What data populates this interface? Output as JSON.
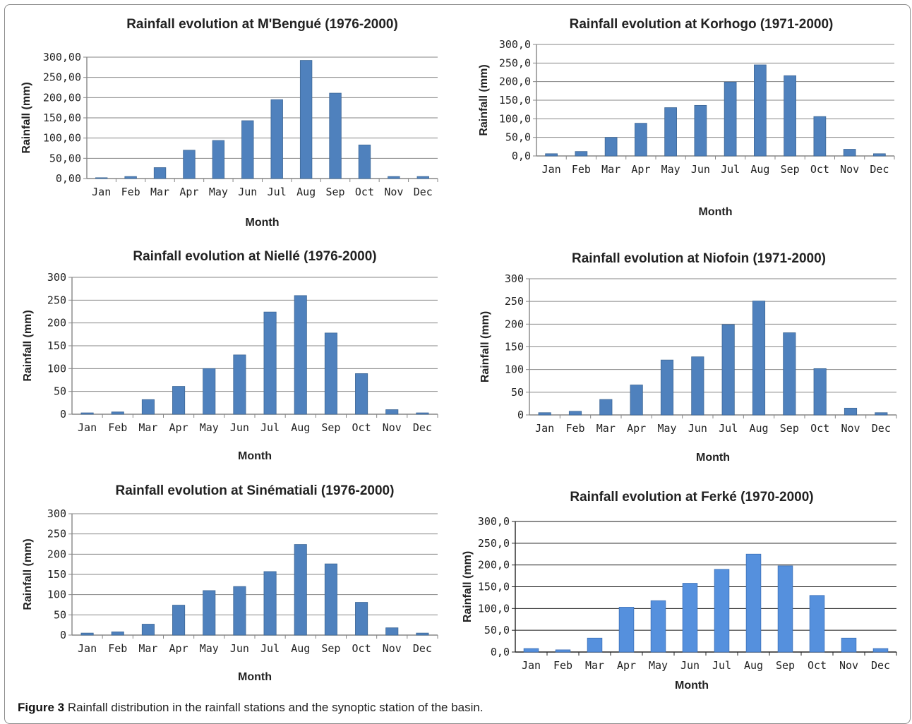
{
  "caption": {
    "label": "Figure 3",
    "text": "Rainfall distribution in the rainfall stations and the synoptic station of the basin."
  },
  "chart_data": [
    {
      "type": "bar",
      "title": "Rainfall evolution at M'Bengué (1976-2000)",
      "xlabel": "Month",
      "ylabel": "Rainfall (mm)",
      "categories": [
        "Jan",
        "Feb",
        "Mar",
        "Apr",
        "May",
        "Jun",
        "Jul",
        "Aug",
        "Sep",
        "Oct",
        "Nov",
        "Dec"
      ],
      "values": [
        2,
        5,
        27,
        70,
        94,
        143,
        195,
        292,
        211,
        83,
        5,
        5
      ],
      "ylim": [
        0,
        300
      ],
      "yticks": [
        "0,00",
        "50,00",
        "100,00",
        "150,00",
        "200,00",
        "250,00",
        "300,00"
      ],
      "grid": true,
      "bar_color": "#4f81bd"
    },
    {
      "type": "bar",
      "title": "Rainfall evolution at Korhogo (1971-2000)",
      "xlabel": "Month",
      "ylabel": "Rainfall (mm)",
      "categories": [
        "Jan",
        "Feb",
        "Mar",
        "Apr",
        "May",
        "Jun",
        "Jul",
        "Aug",
        "Sep",
        "Oct",
        "Nov",
        "Dec"
      ],
      "values": [
        6,
        12,
        50,
        88,
        130,
        136,
        199,
        245,
        216,
        106,
        18,
        6
      ],
      "ylim": [
        0,
        300
      ],
      "yticks": [
        "0,0",
        "50,0",
        "100,0",
        "150,0",
        "200,0",
        "250,0",
        "300,0"
      ],
      "grid": true,
      "bar_color": "#4f81bd"
    },
    {
      "type": "bar",
      "title": "Rainfall evolution at Niellé (1976-2000)",
      "xlabel": "Month",
      "ylabel": "Rainfall (mm)",
      "categories": [
        "Jan",
        "Feb",
        "Mar",
        "Apr",
        "May",
        "Jun",
        "Jul",
        "Aug",
        "Sep",
        "Oct",
        "Nov",
        "Dec"
      ],
      "values": [
        3,
        5,
        32,
        61,
        100,
        130,
        224,
        260,
        178,
        89,
        10,
        3
      ],
      "ylim": [
        0,
        300
      ],
      "yticks": [
        "0",
        "50",
        "100",
        "150",
        "200",
        "250",
        "300"
      ],
      "grid": true,
      "bar_color": "#4f81bd"
    },
    {
      "type": "bar",
      "title": "Rainfall evolution at Niofoin (1971-2000)",
      "xlabel": "Month",
      "ylabel": "Rainfall (mm)",
      "categories": [
        "Jan",
        "Feb",
        "Mar",
        "Apr",
        "May",
        "Jun",
        "Jul",
        "Aug",
        "Sep",
        "Oct",
        "Nov",
        "Dec"
      ],
      "values": [
        5,
        8,
        34,
        66,
        121,
        128,
        199,
        251,
        181,
        102,
        15,
        5
      ],
      "ylim": [
        0,
        300
      ],
      "yticks": [
        "0",
        "50",
        "100",
        "150",
        "200",
        "250",
        "300"
      ],
      "grid": true,
      "bar_color": "#4f81bd"
    },
    {
      "type": "bar",
      "title": "Rainfall evolution at Sinématiali (1976-2000)",
      "xlabel": "Month",
      "ylabel": "Rainfall (mm)",
      "categories": [
        "Jan",
        "Feb",
        "Mar",
        "Apr",
        "May",
        "Jun",
        "Jul",
        "Aug",
        "Sep",
        "Oct",
        "Nov",
        "Dec"
      ],
      "values": [
        5,
        8,
        27,
        74,
        110,
        120,
        157,
        224,
        176,
        81,
        18,
        5
      ],
      "ylim": [
        0,
        300
      ],
      "yticks": [
        "0",
        "50",
        "100",
        "150",
        "200",
        "250",
        "300"
      ],
      "grid": true,
      "bar_color": "#4f81bd"
    },
    {
      "type": "bar",
      "title": "Rainfall evolution at Ferké (1970-2000)",
      "xlabel": "Month",
      "ylabel": "Rainfall (mm)",
      "categories": [
        "Jan",
        "Feb",
        "Mar",
        "Apr",
        "May",
        "Jun",
        "Jul",
        "Aug",
        "Sep",
        "Oct",
        "Nov",
        "Dec"
      ],
      "values": [
        8,
        5,
        32,
        103,
        118,
        158,
        190,
        225,
        198,
        130,
        32,
        8
      ],
      "ylim": [
        0,
        300
      ],
      "yticks": [
        "0,0",
        "50,0",
        "100,0",
        "150,0",
        "200,0",
        "250,0",
        "300,0"
      ],
      "grid": true,
      "bar_color": "#5590dd"
    }
  ]
}
